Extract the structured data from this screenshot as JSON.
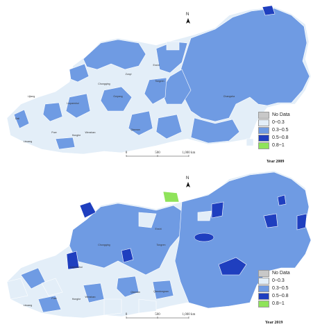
{
  "maps": [
    {
      "year_label": "Year 2009",
      "legend": [
        {
          "label": "No Data",
          "color": "#c8c8c8"
        },
        {
          "label": "0~0.3",
          "color": "#e3eef8"
        },
        {
          "label": "0.3~0.5",
          "color": "#6f9be3"
        },
        {
          "label": "0.5~0.8",
          "color": "#1f3fbf"
        },
        {
          "label": "0.8~1",
          "color": "#8fe35a"
        }
      ],
      "scale": {
        "labels": [
          "0",
          "500",
          "1,000 km"
        ]
      },
      "north": "N"
    },
    {
      "year_label": "Year 2019",
      "legend": [
        {
          "label": "No Data",
          "color": "#c8c8c8"
        },
        {
          "label": "0~0.3",
          "color": "#e3eef8"
        },
        {
          "label": "0.3~0.5",
          "color": "#6f9be3"
        },
        {
          "label": "0.5~0.8",
          "color": "#1f3fbf"
        },
        {
          "label": "0.8~1",
          "color": "#8fe35a"
        }
      ],
      "scale": {
        "labels": [
          "0",
          "500",
          "1,000 km"
        ]
      },
      "north": "N"
    }
  ],
  "place_labels_top": [
    "Chongqing",
    "Zunyi",
    "Liupanshui",
    "Guiyang",
    "Lijiang",
    "Dali",
    "Puer",
    "Honghe",
    "Wenshan",
    "Lincang",
    "Tongren",
    "Enshi",
    "Qiannan",
    "Changsha"
  ],
  "place_labels_bottom": [
    "Chongqing",
    "Liupanshui",
    "Lincang",
    "Puer",
    "Honghe",
    "Wenshan",
    "Tongren",
    "Enshi",
    "Qiannan",
    "Qiandongnan"
  ]
}
